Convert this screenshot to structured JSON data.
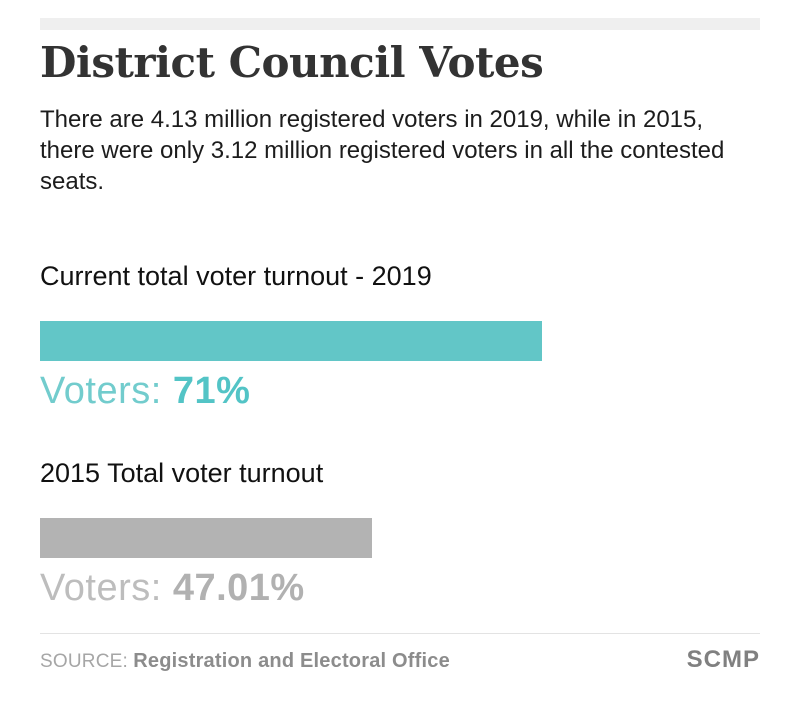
{
  "header": {
    "title": "District Council Votes",
    "subtitle": "There are 4.13 million registered voters in 2019, while in 2015, there were only 3.12 million registered voters in all the contested seats."
  },
  "chart_data": {
    "type": "bar",
    "orientation": "horizontal",
    "xlim": [
      0,
      100
    ],
    "grid": false,
    "legend": false,
    "series": [
      {
        "label": "Current total voter turnout - 2019",
        "value": 71,
        "value_prefix": "Voters: ",
        "value_label": "71%",
        "color": "#62c6c7"
      },
      {
        "label": "2015 Total voter turnout",
        "value": 47.01,
        "value_prefix": "Voters: ",
        "value_label": "47.01%",
        "color": "#b3b3b3"
      }
    ]
  },
  "footer": {
    "source_label": "SOURCE:",
    "source_name": "Registration and Electoral Office",
    "brand": "SCMP"
  },
  "colors": {
    "accent_teal": "#62c6c7",
    "accent_gray": "#b3b3b3",
    "strip": "#efefef",
    "divider": "#e3e3e3"
  }
}
